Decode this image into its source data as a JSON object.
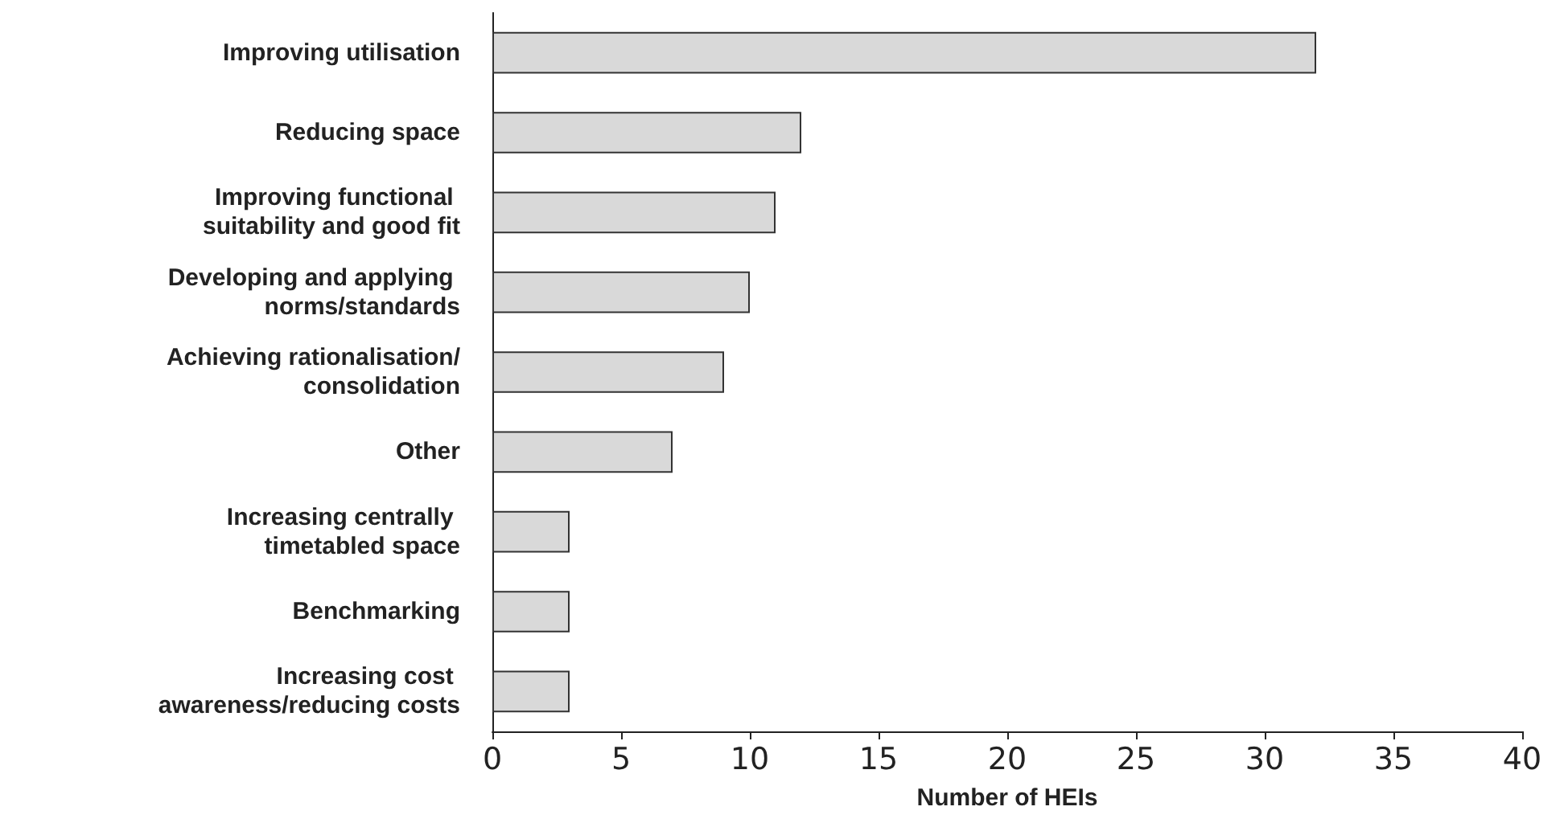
{
  "chart_data": {
    "type": "bar",
    "orientation": "horizontal",
    "xlabel": "Number of HEIs",
    "categories": [
      "Improving utilisation",
      "Reducing space",
      "Improving functional suitability and good fit",
      "Developing and applying norms/standards",
      "Achieving rationalisation/consolidation",
      "Other",
      "Increasing centrally timetabled space",
      "Benchmarking",
      "Increasing cost awareness/reducing costs"
    ],
    "values": [
      32,
      12,
      11,
      10,
      9,
      7,
      3,
      3,
      3
    ],
    "color": "#d9d9d9",
    "xlim": [
      0,
      40
    ],
    "xticks": [
      0,
      5,
      10,
      15,
      20,
      25,
      30,
      35,
      40
    ]
  }
}
